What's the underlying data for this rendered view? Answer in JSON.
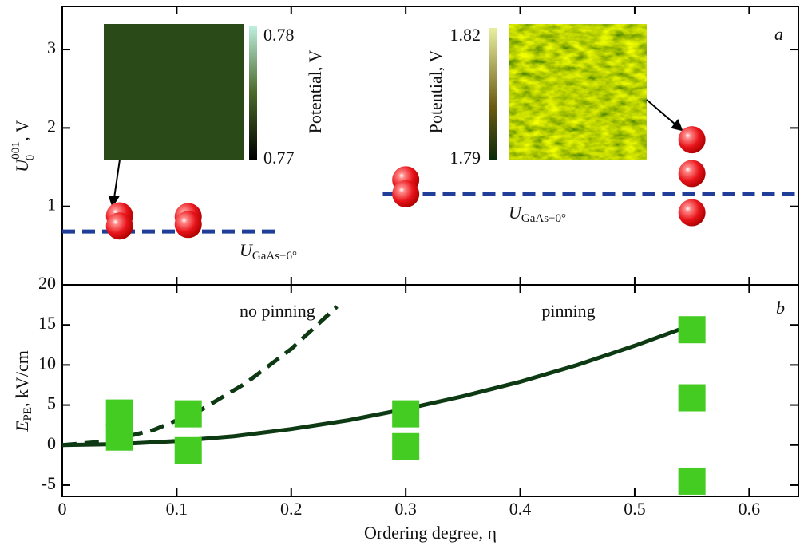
{
  "chart_data": [
    {
      "type": "scatter",
      "panel_label": "a",
      "ylabel": {
        "main": "U",
        "sup": "001",
        "sub": "0",
        "rest": ", V"
      },
      "xlim": [
        0,
        0.643
      ],
      "ylim": [
        0,
        3.55
      ],
      "yticks": [
        1,
        2,
        3
      ],
      "x": [
        0.05,
        0.05,
        0.11,
        0.11,
        0.3,
        0.3,
        0.55,
        0.55,
        0.55
      ],
      "y": [
        0.88,
        0.75,
        0.87,
        0.77,
        1.34,
        1.16,
        1.85,
        1.42,
        0.92
      ],
      "color": "#e8141a",
      "reference_lines": [
        {
          "value": 0.68,
          "xrange": [
            0,
            0.19
          ],
          "color": "#1f3d99",
          "label": {
            "main": "U",
            "sub": "GaAs−6°"
          }
        },
        {
          "value": 1.16,
          "xrange": [
            0.28,
            0.643
          ],
          "color": "#1f3d99",
          "label": {
            "main": "U",
            "sub": "GaAs−0°"
          }
        }
      ],
      "insets": [
        {
          "cbar_top": "0.78",
          "cbar_bottom": "0.77",
          "cbar_label": "Potential, V"
        },
        {
          "cbar_top": "1.82",
          "cbar_bottom": "1.79",
          "cbar_label": "Potential, V"
        }
      ]
    },
    {
      "type": "scatter",
      "panel_label": "b",
      "xlabel": "Ordering degree, η",
      "ylabel": {
        "main": "E",
        "sub": "PE",
        "rest": ", kV/cm"
      },
      "xlim": [
        0,
        0.643
      ],
      "xticks": [
        0,
        0.1,
        0.2,
        0.3,
        0.4,
        0.5,
        0.6
      ],
      "ylim": [
        -6.4,
        20
      ],
      "yticks": [
        -5,
        0,
        5,
        10,
        15,
        20
      ],
      "x": [
        0.05,
        0.05,
        0.11,
        0.11,
        0.3,
        0.3,
        0.55,
        0.55,
        0.55
      ],
      "y": [
        4,
        1,
        3.9,
        -0.7,
        3.9,
        -0.2,
        14.4,
        5.9,
        -4.5
      ],
      "color": "#44cc22",
      "curves": [
        {
          "style": "solid",
          "color": "#0d3a12",
          "x": [
            0,
            0.05,
            0.1,
            0.15,
            0.2,
            0.25,
            0.3,
            0.35,
            0.4,
            0.45,
            0.5,
            0.55
          ],
          "y": [
            0,
            0.12,
            0.5,
            1.1,
            2.0,
            3.1,
            4.5,
            6.1,
            7.9,
            10.0,
            12.4,
            15.0
          ]
        },
        {
          "style": "dashed",
          "color": "#0d3a12",
          "x": [
            0,
            0.04,
            0.08,
            0.12,
            0.16,
            0.2,
            0.24
          ],
          "y": [
            0,
            0.48,
            1.9,
            4.3,
            7.7,
            12.0,
            17.3
          ]
        }
      ],
      "annotations": [
        "no pinning",
        "pinning"
      ]
    }
  ]
}
